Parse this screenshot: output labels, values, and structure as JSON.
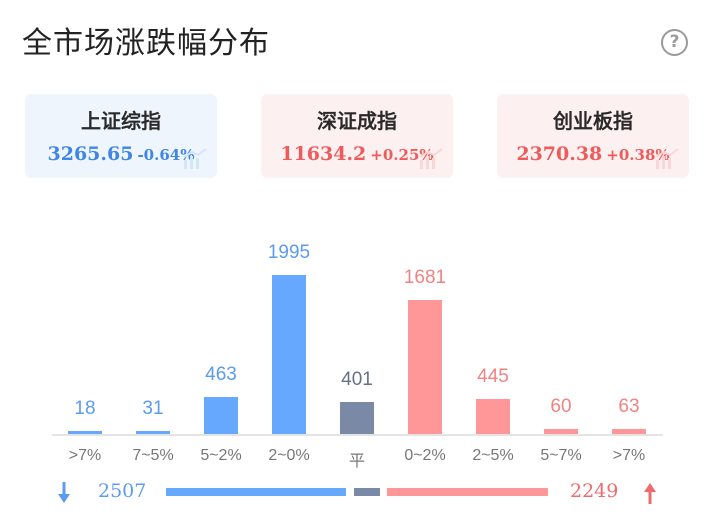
{
  "header": {
    "title": "全市场涨跌幅分布"
  },
  "icons": {
    "help": "help-icon",
    "trend": "trend-chart-icon",
    "down_arrow": "arrow-down-icon",
    "up_arrow": "arrow-up-icon"
  },
  "colors": {
    "up": "#ff9698",
    "down": "#66a8fd",
    "flat": "#7a89a5",
    "up_text": "#ef5b5b",
    "down_text": "#3f86e6"
  },
  "indices": [
    {
      "name": "上证综指",
      "value": "3265.65",
      "change": "-0.64%",
      "direction": "down"
    },
    {
      "name": "深证成指",
      "value": "11634.2",
      "change": "+0.25%",
      "direction": "up"
    },
    {
      "name": "创业板指",
      "value": "2370.38",
      "change": "+0.38%",
      "direction": "up"
    }
  ],
  "chart_data": {
    "type": "bar",
    "categories": [
      ">7%",
      "7~5%",
      "5~2%",
      "2~0%",
      "平",
      "0~2%",
      "2~5%",
      "5~7%",
      ">7%"
    ],
    "values": [
      18,
      31,
      463,
      1995,
      401,
      1681,
      445,
      60,
      63
    ],
    "directions": [
      "down",
      "down",
      "down",
      "down",
      "flat",
      "up",
      "up",
      "up",
      "up"
    ],
    "title": "全市场涨跌幅分布",
    "xlabel": "",
    "ylabel": "",
    "grid": false,
    "legend": "none"
  },
  "summary": {
    "down_count": "2507",
    "up_count": "2249"
  }
}
